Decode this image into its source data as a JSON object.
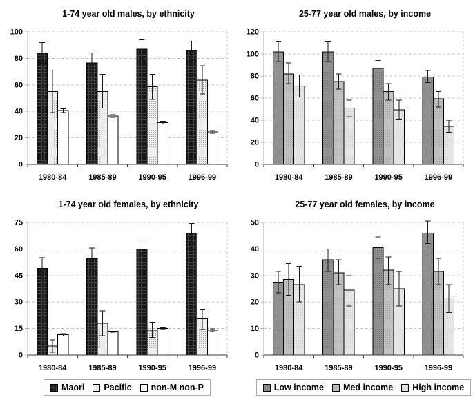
{
  "palette": {
    "grid": "#c9c9c9",
    "axis_y": "#b0b0b0",
    "axis_x": "#3d3d3d",
    "error": "#1a1a1a",
    "text": "#000000",
    "legend_border": "#a9a9a9",
    "patterns": {
      "maori": {
        "fill": "#161616",
        "texture": "#404040",
        "style": "grid"
      },
      "pacific": {
        "fill": "#ededed",
        "texture": "#aaaaaa",
        "style": "dot"
      },
      "non_mp": {
        "fill": "#ffffff",
        "texture": "#ffffff",
        "style": "plain"
      },
      "low": {
        "fill": "#8f8f8f",
        "texture": "#777777",
        "style": "dot"
      },
      "med": {
        "fill": "#c0c0c0",
        "texture": "#a5a5a5",
        "style": "dot"
      },
      "high": {
        "fill": "#e5e5e5",
        "texture": "#d2d2d2",
        "style": "dot"
      }
    }
  },
  "chart_data": [
    {
      "id": "males-ethnicity",
      "type": "bar",
      "title": "1-74 year old males, by ethnicity",
      "categories": [
        "1980-84",
        "1985-89",
        "1990-95",
        "1996-99"
      ],
      "ylim": [
        0,
        100
      ],
      "yticks": [
        0,
        20,
        40,
        60,
        80,
        100
      ],
      "grid": true,
      "legend": false,
      "series": [
        {
          "name": "Maori",
          "pattern": "maori",
          "values": [
            84,
            76.5,
            87,
            86
          ],
          "err_low": [
            76,
            69,
            80,
            79
          ],
          "err_high": [
            92,
            84,
            94,
            93
          ]
        },
        {
          "name": "Pacific",
          "pattern": "pacific",
          "values": [
            55,
            55,
            58.5,
            63.5
          ],
          "err_low": [
            39,
            42.5,
            49,
            53
          ],
          "err_high": [
            71,
            68,
            68,
            74.5
          ]
        },
        {
          "name": "non-M non-P",
          "pattern": "non_mp",
          "values": [
            40.5,
            36.5,
            31.5,
            24.5
          ],
          "err_low": [
            39,
            35.5,
            30.5,
            23.5
          ],
          "err_high": [
            42,
            37.5,
            32.5,
            25.5
          ]
        }
      ]
    },
    {
      "id": "males-income",
      "type": "bar",
      "title": "25-77 year old males, by income",
      "categories": [
        "1980-84",
        "1985-89",
        "1990-95",
        "1996-99"
      ],
      "ylim": [
        0,
        120
      ],
      "yticks": [
        0,
        20,
        40,
        60,
        80,
        100,
        120
      ],
      "grid": true,
      "legend": false,
      "series": [
        {
          "name": "Low income",
          "pattern": "low",
          "values": [
            102,
            102,
            87,
            79
          ],
          "err_low": [
            93,
            93,
            81,
            74
          ],
          "err_high": [
            111,
            111,
            94,
            85
          ]
        },
        {
          "name": "Med income",
          "pattern": "med",
          "values": [
            82,
            75,
            66,
            59.5
          ],
          "err_low": [
            73,
            68,
            58,
            52
          ],
          "err_high": [
            92,
            82,
            73,
            66
          ]
        },
        {
          "name": "High income",
          "pattern": "high",
          "values": [
            71,
            51,
            49.5,
            34.5
          ],
          "err_low": [
            61,
            43,
            41,
            29
          ],
          "err_high": [
            81,
            58,
            58,
            40
          ]
        }
      ]
    },
    {
      "id": "females-ethnicity",
      "type": "bar",
      "title": "1-74 year old females, by ethnicity",
      "categories": [
        "1980-84",
        "1985-89",
        "1990-95",
        "1996-99"
      ],
      "ylim": [
        0,
        75
      ],
      "yticks": [
        0,
        15,
        30,
        45,
        60,
        75
      ],
      "grid": true,
      "legend": true,
      "series": [
        {
          "name": "Maori",
          "pattern": "maori",
          "values": [
            49,
            54.5,
            60,
            69
          ],
          "err_low": [
            42.5,
            48.5,
            57,
            63
          ],
          "err_high": [
            55,
            60.5,
            65,
            74.5
          ]
        },
        {
          "name": "Pacific",
          "pattern": "pacific",
          "values": [
            5,
            18,
            14,
            20.5
          ],
          "err_low": [
            1.5,
            11,
            10,
            14.5
          ],
          "err_high": [
            8.5,
            25,
            18.5,
            25.5
          ]
        },
        {
          "name": "non-M non-P",
          "pattern": "non_mp",
          "values": [
            11.5,
            13.5,
            15,
            14
          ],
          "err_low": [
            10.8,
            12.8,
            14.5,
            13.2
          ],
          "err_high": [
            12.2,
            14.2,
            15.5,
            14.8
          ]
        }
      ]
    },
    {
      "id": "females-income",
      "type": "bar",
      "title": "25-77 year old females, by income",
      "categories": [
        "1980-84",
        "1985-89",
        "1990-95",
        "1996-99"
      ],
      "ylim": [
        0,
        50
      ],
      "yticks": [
        0,
        10,
        20,
        30,
        40,
        50
      ],
      "grid": true,
      "legend": true,
      "series": [
        {
          "name": "Low income",
          "pattern": "low",
          "values": [
            27.5,
            36,
            40.5,
            46
          ],
          "err_low": [
            23.5,
            31.5,
            36.5,
            42
          ],
          "err_high": [
            31.5,
            40,
            44.5,
            50.5
          ]
        },
        {
          "name": "Med income",
          "pattern": "med",
          "values": [
            28.5,
            31,
            32,
            31.5
          ],
          "err_low": [
            22.5,
            26.5,
            26.5,
            26.5
          ],
          "err_high": [
            34.5,
            36,
            37,
            36.5
          ]
        },
        {
          "name": "High income",
          "pattern": "high",
          "values": [
            26.5,
            24.5,
            25,
            21.5
          ],
          "err_low": [
            20,
            18.5,
            18.5,
            16
          ],
          "err_high": [
            33.5,
            30,
            31.5,
            26.5
          ]
        }
      ]
    }
  ]
}
